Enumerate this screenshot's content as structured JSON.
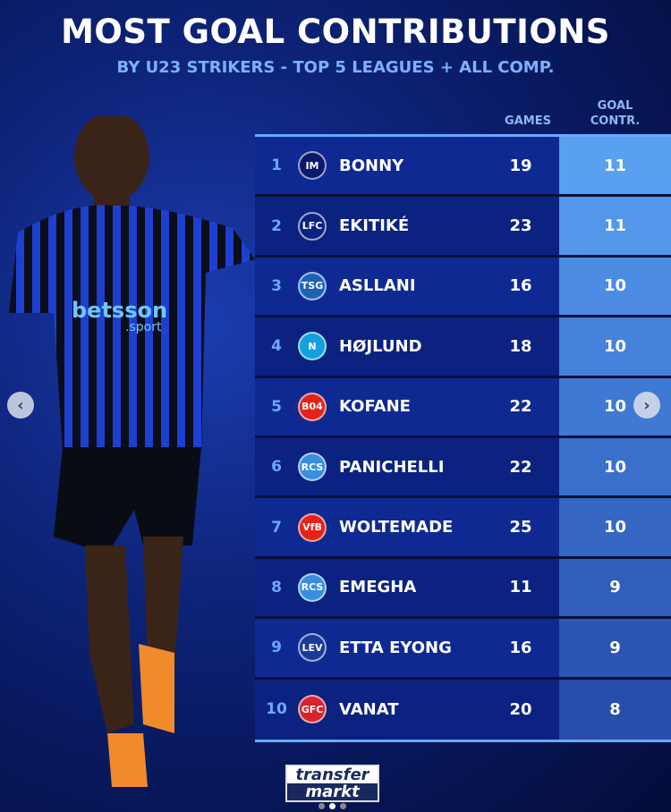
{
  "title": "MOST GOAL CONTRIBUTIONS",
  "subtitle": "BY U23 STRIKERS - TOP 5 LEAGUES + ALL COMP.",
  "headers": {
    "games": "GAMES",
    "goal_contr_1": "GOAL",
    "goal_contr_2": "CONTR."
  },
  "rows": [
    {
      "rank": "1",
      "name": "BONNY",
      "games": "19",
      "gc": "11",
      "crest": "IM",
      "crest_color": "#0a1a6a",
      "gc_color": "#5aa0f0"
    },
    {
      "rank": "2",
      "name": "EKITIKÉ",
      "games": "23",
      "gc": "11",
      "crest": "LFC",
      "crest_color": "transparent",
      "gc_color": "#5396ea"
    },
    {
      "rank": "3",
      "name": "ASLLANI",
      "games": "16",
      "gc": "10",
      "crest": "TSG",
      "crest_color": "#1c63b7",
      "gc_color": "#4c8ce3"
    },
    {
      "rank": "4",
      "name": "HØJLUND",
      "games": "18",
      "gc": "10",
      "crest": "N",
      "crest_color": "#14a0dc",
      "gc_color": "#4582db"
    },
    {
      "rank": "5",
      "name": "KOFANE",
      "games": "22",
      "gc": "10",
      "crest": "B04",
      "crest_color": "#e32219",
      "gc_color": "#3f79d3"
    },
    {
      "rank": "6",
      "name": "PANICHELLI",
      "games": "22",
      "gc": "10",
      "crest": "RCS",
      "crest_color": "#3a8ee0",
      "gc_color": "#3a70cb"
    },
    {
      "rank": "7",
      "name": "WOLTEMADE",
      "games": "25",
      "gc": "10",
      "crest": "VfB",
      "crest_color": "#e32219",
      "gc_color": "#3567c3"
    },
    {
      "rank": "8",
      "name": "EMEGHA",
      "games": "11",
      "gc": "9",
      "crest": "RCS",
      "crest_color": "#3a8ee0",
      "gc_color": "#305ebb"
    },
    {
      "rank": "9",
      "name": "ETTA EYONG",
      "games": "16",
      "gc": "9",
      "crest": "LEV",
      "crest_color": "#1a3a9a",
      "gc_color": "#2c56b3"
    },
    {
      "rank": "10",
      "name": "VANAT",
      "games": "20",
      "gc": "8",
      "crest": "GFC",
      "crest_color": "#d9242c",
      "gc_color": "#284eab"
    }
  ],
  "brand": {
    "line1": "transfer",
    "line2": "markt"
  },
  "player_shirt": {
    "sponsor1": "betsson",
    "sponsor2": ".sport"
  },
  "nav": {
    "prev_icon": "chevron-left-icon",
    "next_icon": "chevron-right-icon"
  }
}
